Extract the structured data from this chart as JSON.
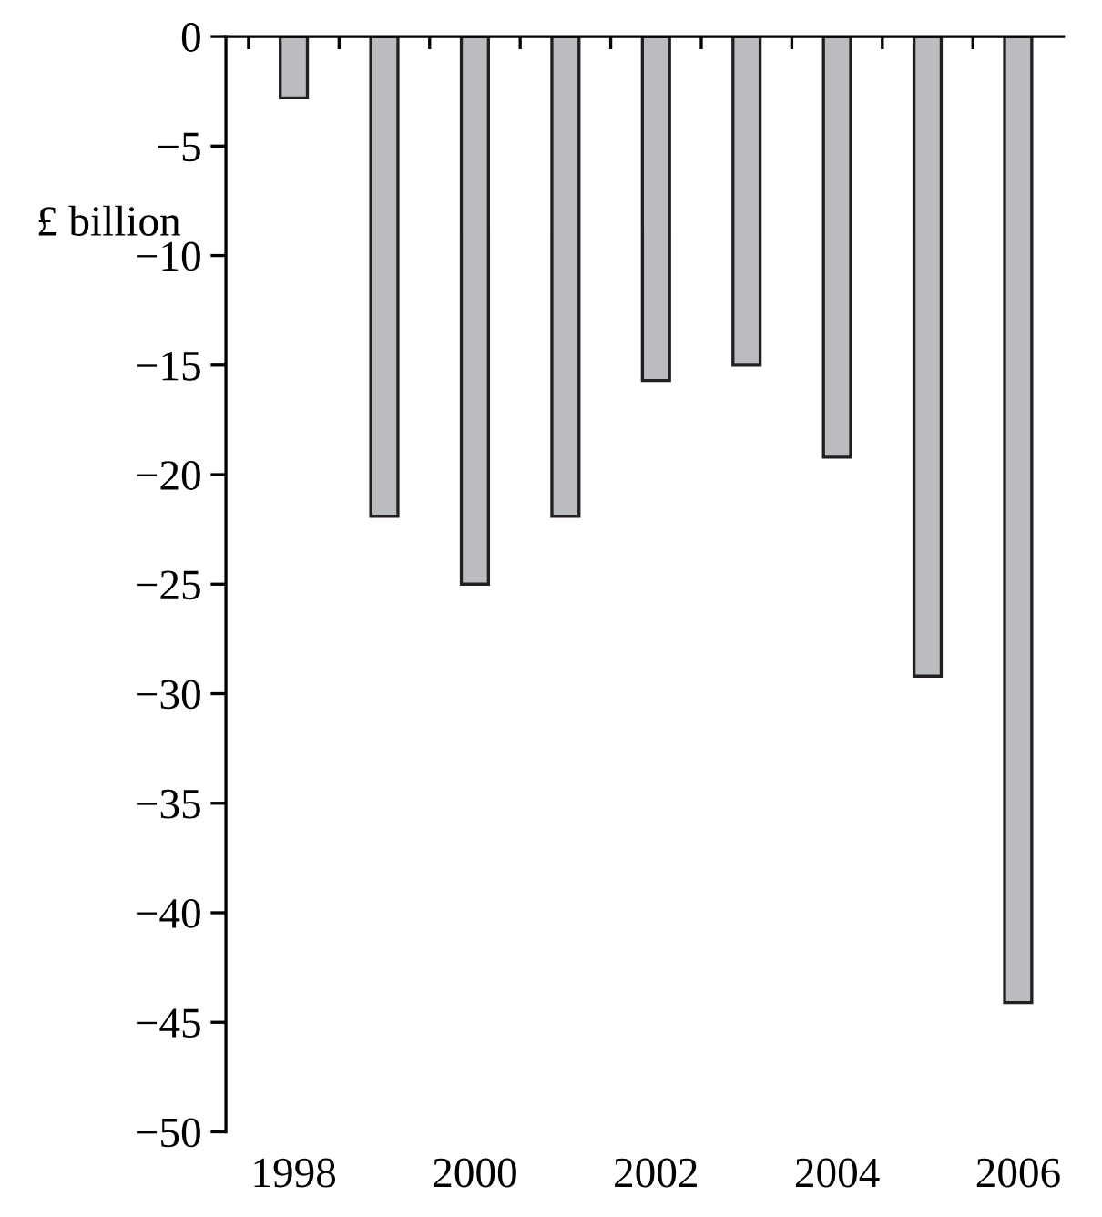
{
  "chart_data": {
    "type": "bar",
    "ylabel": "£ billion",
    "categories": [
      "1998",
      null,
      "2000",
      null,
      "2002",
      null,
      "2004",
      null,
      "2006"
    ],
    "values": [
      -2.8,
      -21.9,
      -25,
      -21.9,
      -15.7,
      -15,
      -19.2,
      -29.2,
      -44.1
    ],
    "color": "#bbbcc0",
    "ylim": [
      -50,
      0
    ],
    "yticks": [
      {
        "value": 0,
        "label": "0"
      },
      {
        "value": -5,
        "label": "−5"
      },
      {
        "value": -10,
        "label": "−10"
      },
      {
        "value": -15,
        "label": "−15"
      },
      {
        "value": -20,
        "label": "−20"
      },
      {
        "value": -25,
        "label": "−25"
      },
      {
        "value": -30,
        "label": "−30"
      },
      {
        "value": -35,
        "label": "−35"
      },
      {
        "value": -40,
        "label": "−40"
      },
      {
        "value": -45,
        "label": "−45"
      },
      {
        "value": -50,
        "label": "−50"
      }
    ],
    "grid": false,
    "legend": false
  }
}
